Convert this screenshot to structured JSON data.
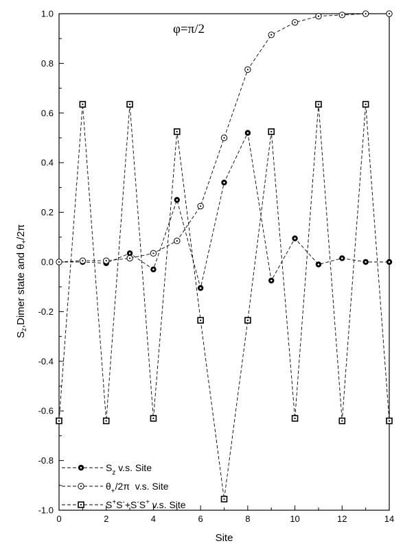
{
  "chart_data": {
    "type": "line",
    "annotation": "φ=π/2",
    "xlabel": "Site",
    "ylabel_parts": {
      "s": "S",
      "z": "z",
      "mid": ",Dimer state and ",
      "theta": "θ",
      "plus": "+",
      "tail": "/2π"
    },
    "xlim": [
      0,
      14
    ],
    "ylim": [
      -1.0,
      1.0
    ],
    "x_ticks": [
      "0",
      "2",
      "4",
      "6",
      "8",
      "10",
      "12",
      "14"
    ],
    "y_ticks": [
      "-1.0",
      "-0.8",
      "-0.6",
      "-0.4",
      "-0.2",
      "0.0",
      "0.2",
      "0.4",
      "0.6",
      "0.8",
      "1.0"
    ],
    "x": [
      0,
      1,
      2,
      3,
      4,
      5,
      6,
      7,
      8,
      9,
      10,
      11,
      12,
      13,
      14
    ],
    "series": [
      {
        "key": "sz",
        "name": "Sz v.s. Site",
        "marker": "filled-circle",
        "values": [
          0.0,
          0.0,
          -0.005,
          0.035,
          -0.03,
          0.25,
          -0.105,
          0.32,
          0.52,
          -0.075,
          0.095,
          -0.01,
          0.015,
          0.0,
          0.0
        ]
      },
      {
        "key": "theta",
        "name": "θ+/2π v.s. Site",
        "marker": "open-circle",
        "values": [
          0.0,
          0.005,
          0.005,
          0.015,
          0.035,
          0.085,
          0.225,
          0.5,
          0.775,
          0.915,
          0.965,
          0.99,
          0.995,
          1.0,
          1.0
        ]
      },
      {
        "key": "dimer",
        "name": "S+S-+S-S+ v.s. Site",
        "marker": "open-square",
        "values": [
          -0.64,
          0.635,
          -0.64,
          0.635,
          -0.63,
          0.525,
          -0.235,
          -0.955,
          -0.235,
          0.525,
          -0.63,
          0.635,
          -0.64,
          0.635,
          -0.64
        ]
      }
    ],
    "legend": {
      "placement": "bottom-left",
      "sz": {
        "s": "S",
        "sub": "z",
        "tail": " v.s. Site"
      },
      "theta": {
        "t": "θ",
        "sub": "+",
        "tail": "/2π  v.s. Site"
      },
      "dimer": {
        "s1": "S",
        "p1": "+",
        "s2": "S",
        "m1": "-",
        "plus": "+S",
        "m2": "-",
        "s3": "S",
        "p2": "+",
        "tail": " v.s. Site"
      }
    },
    "grid": false
  }
}
